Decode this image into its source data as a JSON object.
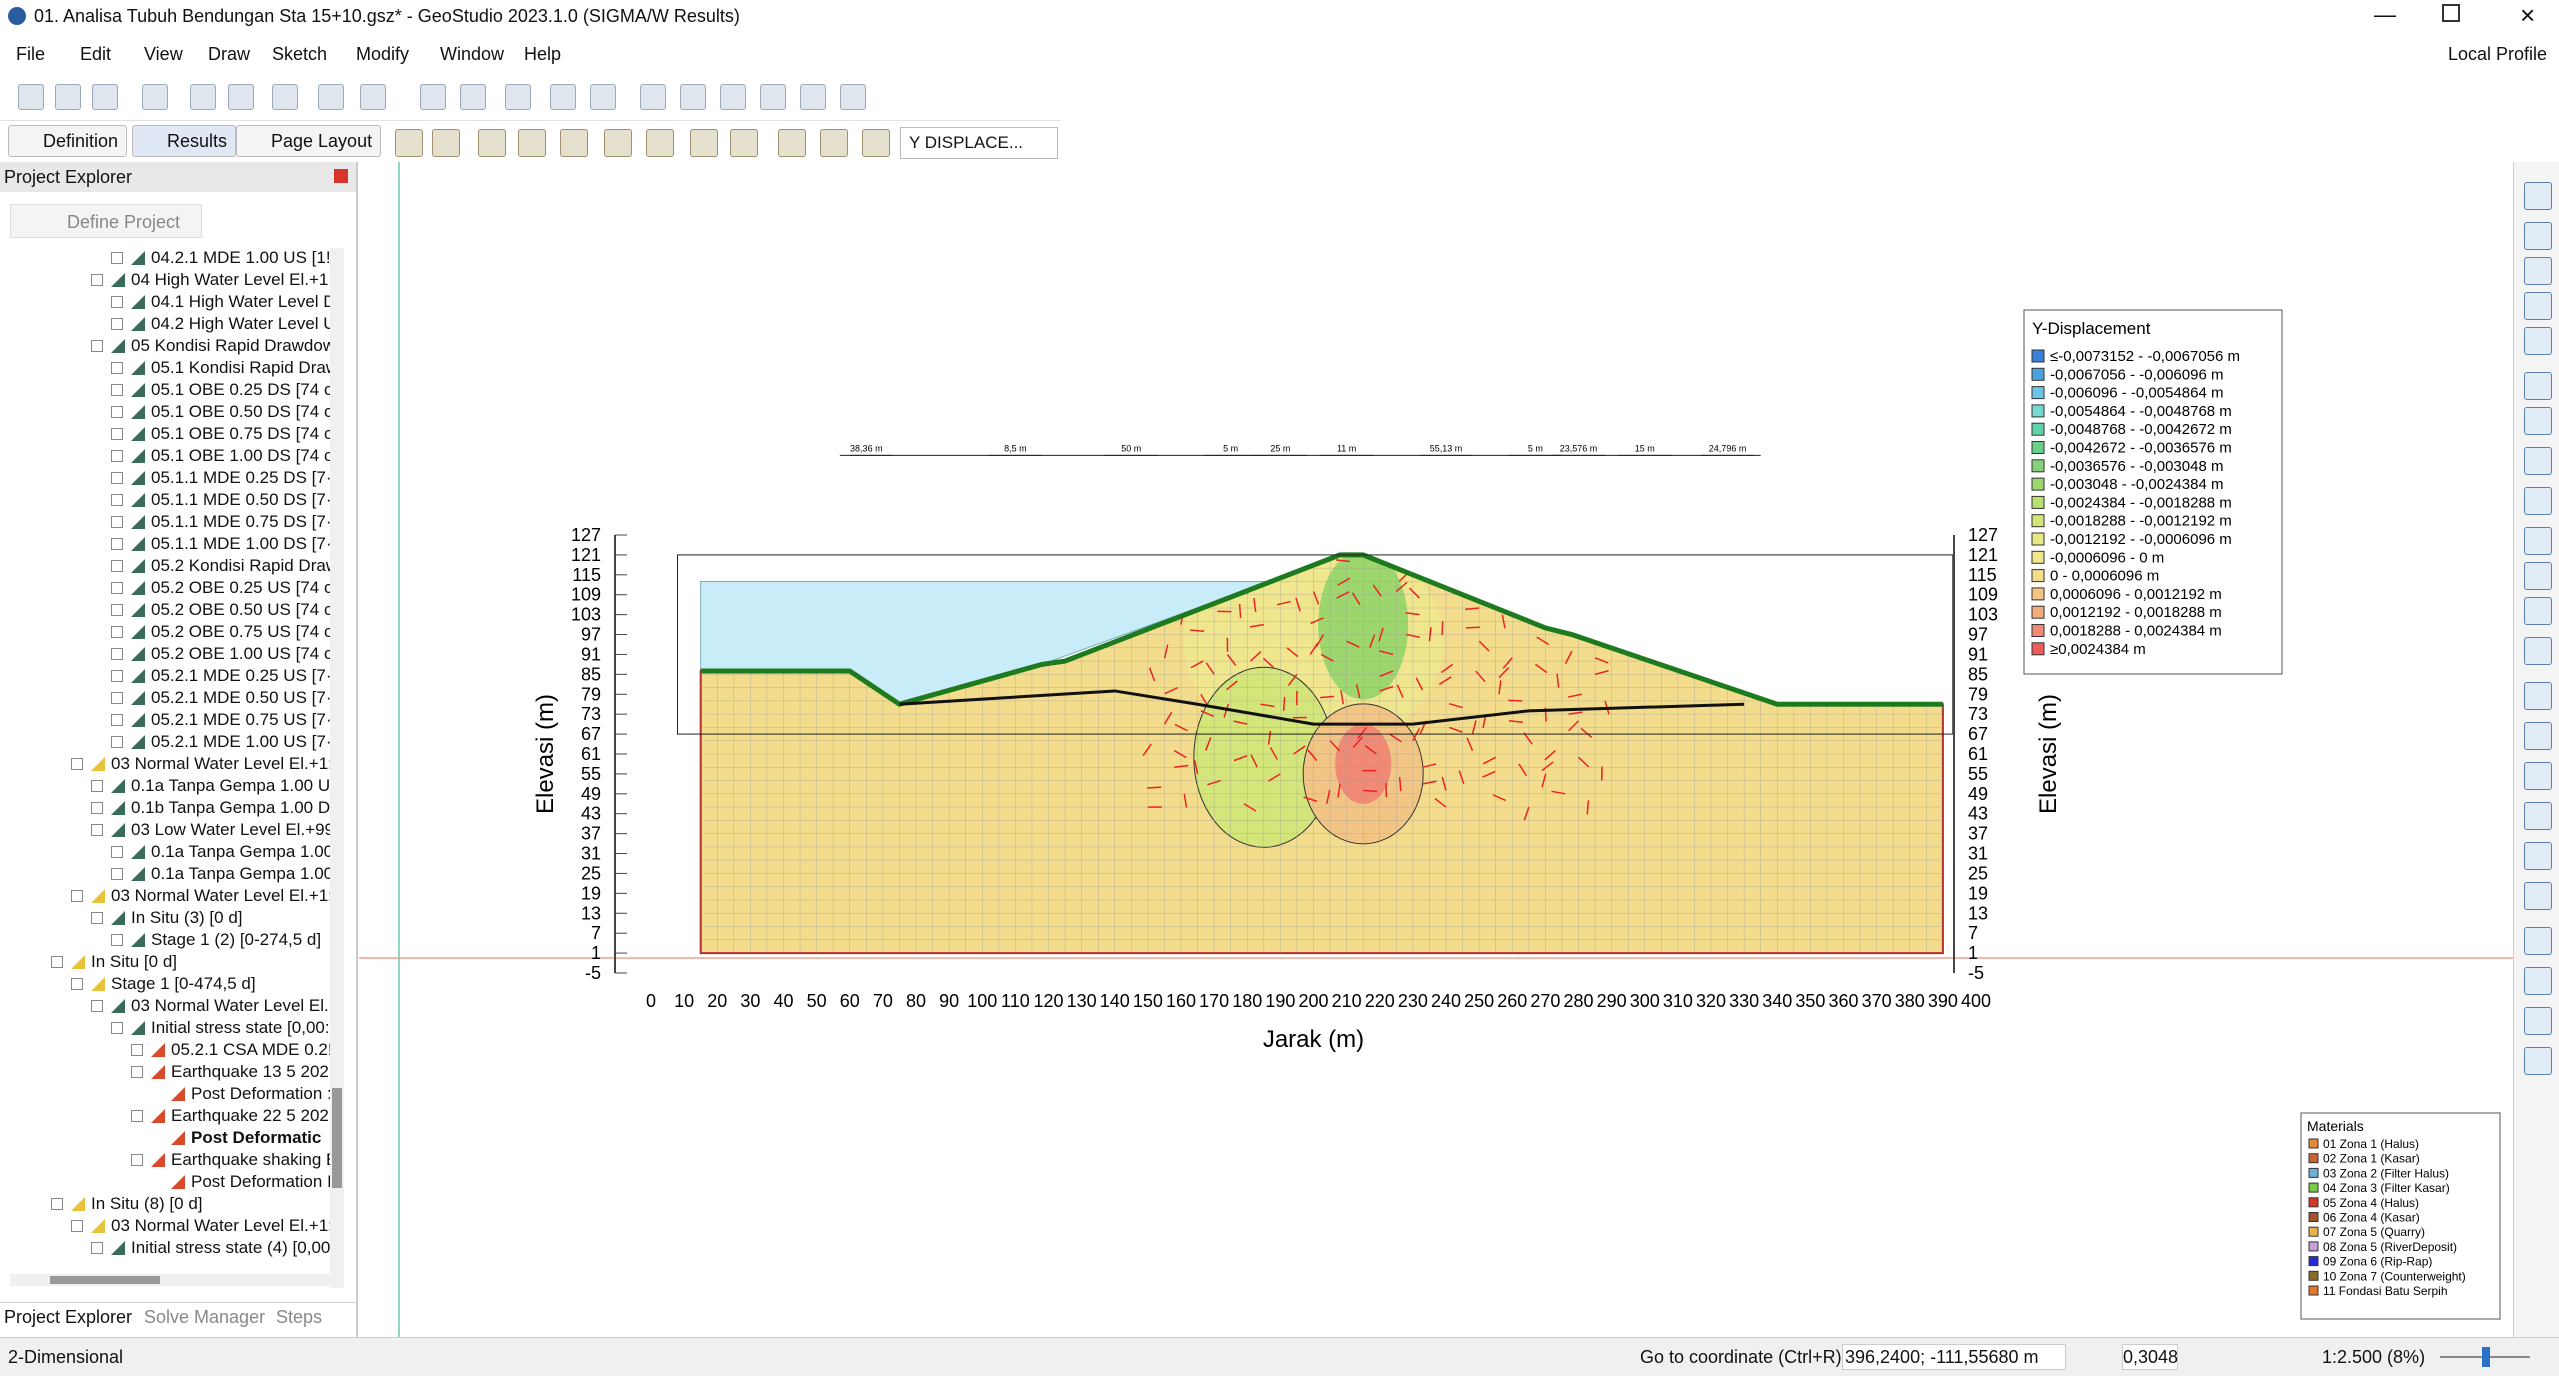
{
  "title_bar": {
    "title": "01. Analisa Tubuh Bendungan Sta 15+10.gsz* - GeoStudio 2023.1.0 (SIGMA/W Results)"
  },
  "menu": [
    "File",
    "Edit",
    "View",
    "Draw",
    "Sketch",
    "Modify",
    "Window",
    "Help"
  ],
  "profile": "Local Profile",
  "toolbar": {
    "definition": "Definition",
    "results": "Results",
    "page_layout": "Page Layout",
    "result_type": "Y DISPLACE..."
  },
  "explorer": {
    "title": "Project Explorer",
    "define_button": "Define Project",
    "items": [
      {
        "level": 4,
        "label": "04.2.1 MDE 1.00 US [1!"
      },
      {
        "level": 3,
        "label": "04 High Water Level El.+1:"
      },
      {
        "level": 4,
        "label": "04.1 High Water Level D"
      },
      {
        "level": 4,
        "label": "04.2 High Water Level U"
      },
      {
        "level": 3,
        "label": "05 Kondisi Rapid Drawdow"
      },
      {
        "level": 4,
        "label": "05.1 Kondisi Rapid Draw"
      },
      {
        "level": 4,
        "label": "05.1 OBE 0.25 DS [74 c"
      },
      {
        "level": 4,
        "label": "05.1 OBE 0.50 DS [74 c"
      },
      {
        "level": 4,
        "label": "05.1 OBE 0.75 DS [74 c"
      },
      {
        "level": 4,
        "label": "05.1 OBE 1.00 DS [74 c"
      },
      {
        "level": 4,
        "label": "05.1.1 MDE 0.25 DS [7·"
      },
      {
        "level": 4,
        "label": "05.1.1 MDE 0.50 DS [7·"
      },
      {
        "level": 4,
        "label": "05.1.1 MDE 0.75 DS [7·"
      },
      {
        "level": 4,
        "label": "05.1.1 MDE 1.00 DS [7·"
      },
      {
        "level": 4,
        "label": "05.2 Kondisi Rapid Draw"
      },
      {
        "level": 4,
        "label": "05.2 OBE 0.25 US [74 c"
      },
      {
        "level": 4,
        "label": "05.2 OBE 0.50 US [74 c"
      },
      {
        "level": 4,
        "label": "05.2 OBE 0.75 US [74 c"
      },
      {
        "level": 4,
        "label": "05.2 OBE 1.00 US [74 c"
      },
      {
        "level": 4,
        "label": "05.2.1 MDE 0.25 US [7·"
      },
      {
        "level": 4,
        "label": "05.2.1 MDE 0.50 US [7·"
      },
      {
        "level": 4,
        "label": "05.2.1 MDE 0.75 US [7·"
      },
      {
        "level": 4,
        "label": "05.2.1 MDE 1.00 US [7·"
      },
      {
        "level": 2,
        "label": "03 Normal Water Level El.+1:"
      },
      {
        "level": 3,
        "label": "0.1a Tanpa Gempa 1.00 U:"
      },
      {
        "level": 3,
        "label": "0.1b Tanpa Gempa 1.00 D"
      },
      {
        "level": 3,
        "label": "03 Low Water Level El.+99"
      },
      {
        "level": 4,
        "label": "0.1a Tanpa Gempa 1.00"
      },
      {
        "level": 4,
        "label": "0.1a Tanpa Gempa 1.00"
      },
      {
        "level": 2,
        "label": "03 Normal Water Level El.+1:"
      },
      {
        "level": 3,
        "label": "In Situ (3) [0 d]"
      },
      {
        "level": 4,
        "label": "Stage 1 (2) [0-274,5 d]"
      },
      {
        "level": 1,
        "label": "In Situ [0 d]"
      },
      {
        "level": 2,
        "label": "Stage 1 [0-474,5 d]"
      },
      {
        "level": 3,
        "label": "03 Normal Water Level El.·"
      },
      {
        "level": 4,
        "label": "Initial stress state [0,00:"
      },
      {
        "level": 5,
        "label": "05.2.1 CSA MDE 0.2!"
      },
      {
        "level": 5,
        "label": "Earthquake 13 5 202·"
      },
      {
        "level": 6,
        "label": "Post Deformation :"
      },
      {
        "level": 5,
        "label": "Earthquake 22 5 202·"
      },
      {
        "level": 6,
        "label": "Post Deformatic",
        "bold": true
      },
      {
        "level": 5,
        "label": "Earthquake shaking E"
      },
      {
        "level": 6,
        "label": "Post Deformation I"
      },
      {
        "level": 1,
        "label": "In Situ (8) [0 d]"
      },
      {
        "level": 2,
        "label": "03 Normal Water Level El.+1:"
      },
      {
        "level": 3,
        "label": "Initial stress state (4) [0,00"
      }
    ],
    "tabs": [
      "Project Explorer",
      "Solve Manager",
      "Steps"
    ]
  },
  "plot": {
    "x_label": "Jarak (m)",
    "y_label": "Elevasi (m)",
    "xticks": [
      0,
      10,
      20,
      30,
      40,
      50,
      60,
      70,
      80,
      90,
      100,
      110,
      120,
      130,
      140,
      150,
      160,
      170,
      180,
      190,
      200,
      210,
      220,
      230,
      240,
      250,
      260,
      270,
      280,
      290,
      300,
      310,
      320,
      330,
      340,
      350,
      360,
      370,
      380,
      390,
      400
    ],
    "yticks": [
      127,
      121,
      115,
      109,
      103,
      97,
      91,
      85,
      79,
      73,
      67,
      61,
      55,
      49,
      43,
      37,
      31,
      25,
      19,
      13,
      7,
      1,
      -5
    ],
    "dimensions": [
      "38,36 m",
      "8,5 m",
      "50 m",
      "5 m",
      "25 m",
      "11 m",
      "55,13 m",
      "5 m",
      "23,576 m",
      "15 m",
      "24,796 m"
    ]
  },
  "legend": {
    "title": "Y-Displacement",
    "items": [
      {
        "label": "≤-0,0073152 - -0,0067056 m",
        "color": "#3b7fd6"
      },
      {
        "label": "-0,0067056 - -0,006096 m",
        "color": "#4aa3df"
      },
      {
        "label": "-0,006096 - -0,0054864 m",
        "color": "#6cc4e8"
      },
      {
        "label": "-0,0054864 - -0,0048768 m",
        "color": "#76d8d0"
      },
      {
        "label": "-0,0048768 - -0,0042672 m",
        "color": "#5fd2a8"
      },
      {
        "label": "-0,0042672 - -0,0036576 m",
        "color": "#6bcf8a"
      },
      {
        "label": "-0,0036576 - -0,003048 m",
        "color": "#86d27a"
      },
      {
        "label": "-0,003048 - -0,0024384 m",
        "color": "#9cd66c"
      },
      {
        "label": "-0,0024384 - -0,0018288 m",
        "color": "#b7e070"
      },
      {
        "label": "-0,0018288 - -0,0012192 m",
        "color": "#d4e67a"
      },
      {
        "label": "-0,0012192 - -0,0006096 m",
        "color": "#e6e886"
      },
      {
        "label": "-0,0006096 - 0 m",
        "color": "#f0e68e"
      },
      {
        "label": "0 - 0,0006096 m",
        "color": "#f3dc8c"
      },
      {
        "label": "0,0006096 - 0,0012192 m",
        "color": "#f2c585"
      },
      {
        "label": "0,0012192 - 0,0018288 m",
        "color": "#f2ad7e"
      },
      {
        "label": "0,0018288 - 0,0024384 m",
        "color": "#f08a75"
      },
      {
        "label": "≥0,0024384 m",
        "color": "#ee5b5b"
      }
    ]
  },
  "materials": {
    "title": "Materials",
    "items": [
      {
        "label": "01 Zona 1 (Halus)",
        "color": "#e08a3a"
      },
      {
        "label": "02 Zona 1 (Kasar)",
        "color": "#c86432"
      },
      {
        "label": "03 Zona 2 (Filter Halus)",
        "color": "#6ab0d8"
      },
      {
        "label": "04 Zona 3 (Filter Kasar)",
        "color": "#7ac943"
      },
      {
        "label": "05 Zona 4 (Halus)",
        "color": "#d23b2a"
      },
      {
        "label": "06 Zona 4 (Kasar)",
        "color": "#a0522d"
      },
      {
        "label": "07 Zona 5 (Quarry)",
        "color": "#e8b44a"
      },
      {
        "label": "08 Zona 5 (RiverDeposit)",
        "color": "#c9a0dc"
      },
      {
        "label": "09 Zona 6 (Rip-Rap)",
        "color": "#2a2ad0"
      },
      {
        "label": "10 Zona 7 (Counterweight)",
        "color": "#8a6a2a"
      },
      {
        "label": "11 Fondasi Batu Serpih",
        "color": "#e07a2a"
      }
    ]
  },
  "status": {
    "mode": "2-Dimensional",
    "goto": "Go to coordinate (Ctrl+R):",
    "coordinate": "396,2400; -111,55680 m",
    "snap": "0,3048",
    "zoom": "1:2.500 (8%)"
  }
}
